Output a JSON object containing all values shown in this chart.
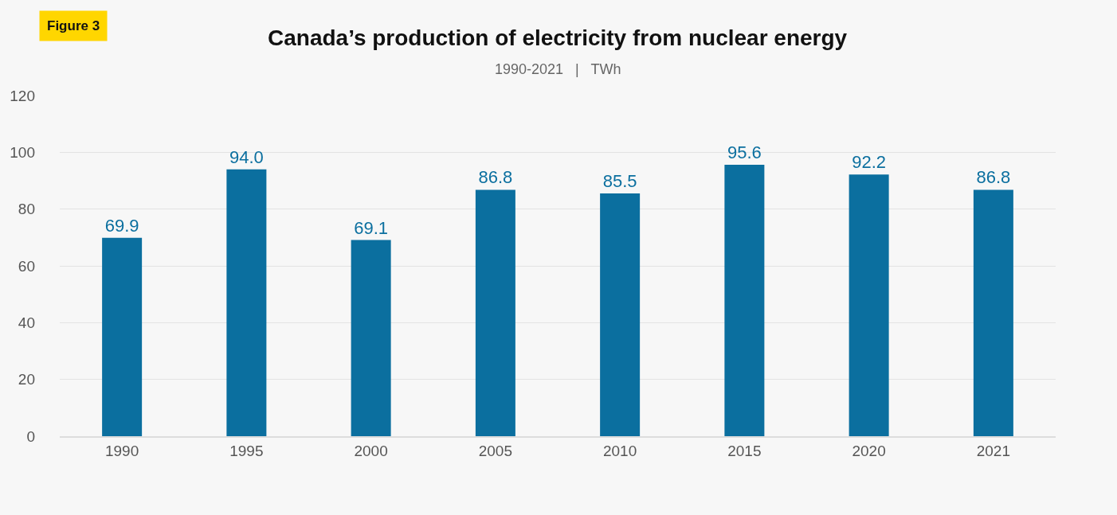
{
  "chart_data": {
    "type": "bar",
    "title": "Canada’s production of electricity from nuclear energy",
    "subtitle": "1990-2021   |   TWh",
    "annotations": [
      "Figure 3"
    ],
    "categories": [
      "1990",
      "1995",
      "2000",
      "2005",
      "2010",
      "2015",
      "2020",
      "2021"
    ],
    "values": [
      69.9,
      94.0,
      69.1,
      86.8,
      85.5,
      95.6,
      92.2,
      86.8
    ],
    "value_labels": [
      "69.9",
      "94.0",
      "69.1",
      "86.8",
      "85.5",
      "95.6",
      "92.2",
      "86.8"
    ],
    "color": "#0b6f9f",
    "ylim": [
      0,
      120
    ],
    "yticks": [
      0,
      20,
      40,
      60,
      80,
      100,
      120
    ],
    "grid": "y"
  }
}
